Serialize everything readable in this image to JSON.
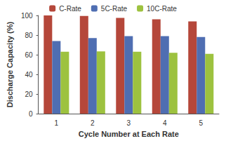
{
  "chart_data": {
    "type": "bar",
    "x_label": "Cycle Number at Each Rate",
    "y_label": "Discharge Capacity (%)",
    "categories": [
      "1",
      "2",
      "3",
      "4",
      "5"
    ],
    "series": [
      {
        "name": "C-Rate",
        "color": "#b5473a",
        "values": [
          100,
          99.5,
          97.5,
          96,
          94
        ]
      },
      {
        "name": "5C-Rate",
        "color": "#4f6eb2",
        "values": [
          74,
          77,
          79,
          79,
          78
        ]
      },
      {
        "name": "10C-Rate",
        "color": "#9dc23f",
        "values": [
          63,
          63.5,
          63,
          62,
          61
        ]
      }
    ],
    "ylim": [
      0,
      100
    ],
    "yticks": [
      0,
      20,
      40,
      60,
      80,
      100
    ],
    "grid": false,
    "legend": "top"
  }
}
